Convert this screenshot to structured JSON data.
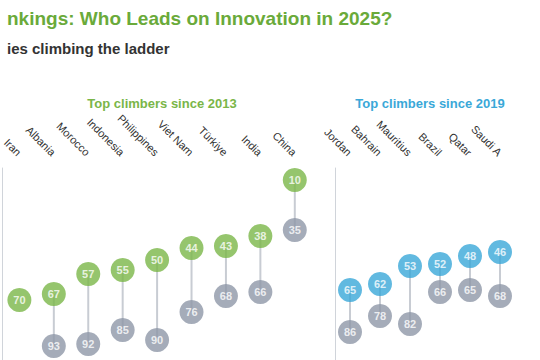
{
  "header": {
    "title": "nkings: Who Leads on Innovation in 2025?",
    "subtitle": "ies climbing the ladder"
  },
  "chart_data": [
    {
      "type": "dumbbell",
      "title": "Top climbers since 2013",
      "categories": [
        "Iran",
        "Albania",
        "Morocco",
        "Indonesia",
        "Philippines",
        "Viet Nam",
        "Türkiye",
        "India",
        "China"
      ],
      "series": [
        {
          "color": "#7ab648",
          "values": [
            70,
            67,
            57,
            55,
            50,
            44,
            43,
            38,
            10
          ]
        },
        {
          "color": "#8e97a8",
          "values": [
            null,
            93,
            92,
            85,
            90,
            76,
            68,
            66,
            35
          ]
        }
      ],
      "ylim": [
        100,
        4
      ],
      "yticks": [],
      "tick_labels": "x",
      "data_labels": true,
      "grid": false
    },
    {
      "type": "dumbbell",
      "title": "Top climbers since 2019",
      "categories": [
        "Jordan",
        "Bahrain",
        "Mauritius",
        "Brazil",
        "Qatar",
        "Saudi A"
      ],
      "series": [
        {
          "color": "#3aa8d8",
          "values": [
            65,
            62,
            53,
            52,
            48,
            46
          ]
        },
        {
          "color": "#8e97a8",
          "values": [
            86,
            78,
            82,
            66,
            65,
            68
          ]
        }
      ],
      "ylim": [
        100,
        4
      ],
      "yticks": [],
      "tick_labels": "x",
      "data_labels": true,
      "grid": false
    }
  ]
}
